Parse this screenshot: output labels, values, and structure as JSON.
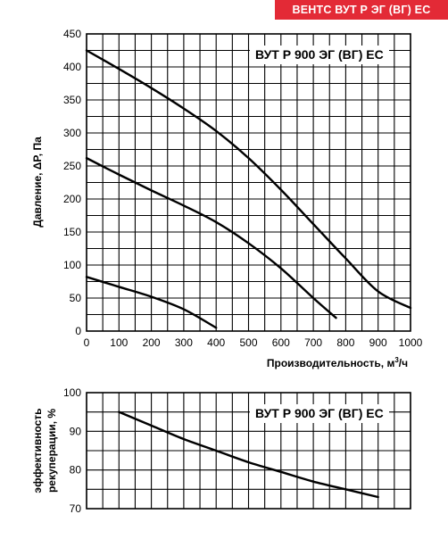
{
  "header": {
    "badge": "ВЕНТС ВУТ Р ЭГ (ВГ) ЕС"
  },
  "chart_data": [
    {
      "type": "line",
      "title": "ВУТ Р 900 ЭГ (ВГ) ЕС",
      "xlabel": "Производительность, м",
      "xlabel_sup": "3",
      "xlabel_tail": "/ч",
      "ylabel": "Давление, ΔР, Па",
      "xlim": [
        0,
        1000
      ],
      "ylim": [
        0,
        450
      ],
      "xticks": [
        0,
        100,
        200,
        300,
        400,
        500,
        600,
        700,
        800,
        900,
        1000
      ],
      "yticks": [
        0,
        50,
        100,
        150,
        200,
        250,
        300,
        350,
        400,
        450
      ],
      "grid": true,
      "series": [
        {
          "x": [
            0,
            100,
            200,
            300,
            400,
            500,
            600,
            700,
            800,
            900,
            1000
          ],
          "y": [
            425,
            397,
            368,
            337,
            303,
            262,
            214,
            162,
            110,
            60,
            35
          ]
        },
        {
          "x": [
            0,
            100,
            200,
            300,
            400,
            500,
            600,
            700,
            770
          ],
          "y": [
            262,
            237,
            213,
            190,
            165,
            133,
            95,
            50,
            20
          ]
        },
        {
          "x": [
            0,
            100,
            200,
            300,
            400
          ],
          "y": [
            82,
            67,
            52,
            33,
            5
          ]
        }
      ]
    },
    {
      "type": "line",
      "title": "ВУТ Р 900 ЭГ (ВГ) ЕС",
      "xlabel": "",
      "ylabel": "эффективность рекуперации, %",
      "ylabel_lines": [
        "эффективность",
        "рекуперации, %"
      ],
      "xlim": [
        0,
        1000
      ],
      "ylim": [
        70,
        100
      ],
      "yticks": [
        70,
        80,
        90,
        100
      ],
      "grid": true,
      "series": [
        {
          "x": [
            100,
            200,
            300,
            400,
            500,
            600,
            700,
            800,
            900
          ],
          "y": [
            95,
            91.5,
            88,
            85,
            82,
            79.5,
            77,
            75,
            73
          ]
        }
      ]
    }
  ]
}
